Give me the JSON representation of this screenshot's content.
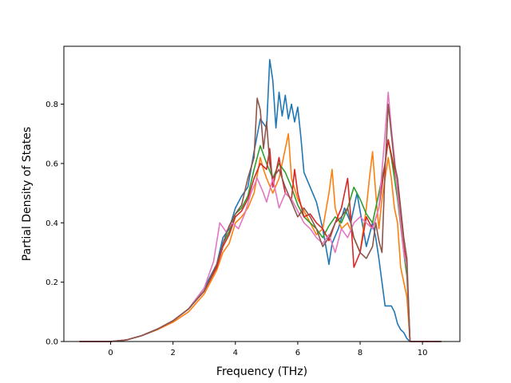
{
  "chart_data": {
    "type": "line",
    "xlabel": "Frequency (THz)",
    "ylabel": "Partial Density of States",
    "xlim": [
      -1.5,
      11.2
    ],
    "ylim": [
      0.0,
      0.995
    ],
    "xticks": [
      0,
      2,
      4,
      6,
      8,
      10
    ],
    "yticks": [
      0.0,
      0.2,
      0.4,
      0.6,
      0.8
    ],
    "xtick_labels": [
      "0",
      "2",
      "4",
      "6",
      "8",
      "10"
    ],
    "ytick_labels": [
      "0.0",
      "0.2",
      "0.4",
      "0.6",
      "0.8"
    ],
    "grid": false,
    "series": [
      {
        "color": "#1f77b4",
        "points": [
          [
            -1.0,
            0
          ],
          [
            0,
            0
          ],
          [
            0.5,
            0.005
          ],
          [
            1.0,
            0.02
          ],
          [
            1.5,
            0.04
          ],
          [
            2.0,
            0.07
          ],
          [
            2.5,
            0.11
          ],
          [
            3.0,
            0.18
          ],
          [
            3.4,
            0.26
          ],
          [
            3.6,
            0.35
          ],
          [
            3.8,
            0.38
          ],
          [
            4.0,
            0.45
          ],
          [
            4.2,
            0.49
          ],
          [
            4.4,
            0.52
          ],
          [
            4.6,
            0.64
          ],
          [
            4.8,
            0.75
          ],
          [
            5.0,
            0.72
          ],
          [
            5.1,
            0.95
          ],
          [
            5.2,
            0.88
          ],
          [
            5.3,
            0.72
          ],
          [
            5.4,
            0.84
          ],
          [
            5.5,
            0.76
          ],
          [
            5.6,
            0.83
          ],
          [
            5.7,
            0.75
          ],
          [
            5.8,
            0.8
          ],
          [
            5.9,
            0.74
          ],
          [
            6.0,
            0.79
          ],
          [
            6.1,
            0.69
          ],
          [
            6.2,
            0.57
          ],
          [
            6.4,
            0.52
          ],
          [
            6.6,
            0.47
          ],
          [
            6.8,
            0.38
          ],
          [
            7.0,
            0.26
          ],
          [
            7.1,
            0.33
          ],
          [
            7.3,
            0.38
          ],
          [
            7.5,
            0.45
          ],
          [
            7.7,
            0.4
          ],
          [
            7.9,
            0.5
          ],
          [
            8.1,
            0.38
          ],
          [
            8.2,
            0.32
          ],
          [
            8.4,
            0.4
          ],
          [
            8.5,
            0.35
          ],
          [
            8.6,
            0.28
          ],
          [
            8.7,
            0.2
          ],
          [
            8.8,
            0.12
          ],
          [
            9.0,
            0.12
          ],
          [
            9.1,
            0.1
          ],
          [
            9.2,
            0.06
          ],
          [
            9.3,
            0.04
          ],
          [
            9.4,
            0.03
          ],
          [
            9.5,
            0.01
          ],
          [
            9.6,
            0
          ],
          [
            10.6,
            0
          ]
        ]
      },
      {
        "color": "#ff7f0e",
        "points": [
          [
            -1.0,
            0
          ],
          [
            0,
            0
          ],
          [
            0.5,
            0.005
          ],
          [
            1.0,
            0.02
          ],
          [
            1.5,
            0.04
          ],
          [
            2.0,
            0.065
          ],
          [
            2.5,
            0.1
          ],
          [
            3.0,
            0.16
          ],
          [
            3.4,
            0.24
          ],
          [
            3.6,
            0.3
          ],
          [
            3.8,
            0.33
          ],
          [
            4.0,
            0.4
          ],
          [
            4.2,
            0.42
          ],
          [
            4.4,
            0.45
          ],
          [
            4.6,
            0.5
          ],
          [
            4.8,
            0.62
          ],
          [
            4.9,
            0.58
          ],
          [
            5.0,
            0.55
          ],
          [
            5.2,
            0.5
          ],
          [
            5.4,
            0.55
          ],
          [
            5.6,
            0.65
          ],
          [
            5.7,
            0.7
          ],
          [
            5.8,
            0.55
          ],
          [
            6.0,
            0.48
          ],
          [
            6.2,
            0.44
          ],
          [
            6.4,
            0.4
          ],
          [
            6.6,
            0.36
          ],
          [
            6.8,
            0.38
          ],
          [
            7.0,
            0.5
          ],
          [
            7.1,
            0.58
          ],
          [
            7.2,
            0.45
          ],
          [
            7.4,
            0.38
          ],
          [
            7.6,
            0.4
          ],
          [
            7.8,
            0.35
          ],
          [
            8.0,
            0.3
          ],
          [
            8.2,
            0.45
          ],
          [
            8.3,
            0.55
          ],
          [
            8.4,
            0.64
          ],
          [
            8.5,
            0.5
          ],
          [
            8.6,
            0.38
          ],
          [
            8.7,
            0.48
          ],
          [
            8.8,
            0.55
          ],
          [
            8.9,
            0.62
          ],
          [
            9.0,
            0.55
          ],
          [
            9.1,
            0.45
          ],
          [
            9.2,
            0.4
          ],
          [
            9.3,
            0.25
          ],
          [
            9.4,
            0.2
          ],
          [
            9.5,
            0.15
          ],
          [
            9.6,
            0
          ],
          [
            10.6,
            0
          ]
        ]
      },
      {
        "color": "#2ca02c",
        "points": [
          [
            -1.0,
            0
          ],
          [
            0,
            0
          ],
          [
            0.5,
            0.005
          ],
          [
            1.0,
            0.02
          ],
          [
            1.5,
            0.042
          ],
          [
            2.0,
            0.07
          ],
          [
            2.5,
            0.11
          ],
          [
            3.0,
            0.17
          ],
          [
            3.4,
            0.25
          ],
          [
            3.6,
            0.33
          ],
          [
            3.8,
            0.37
          ],
          [
            4.0,
            0.43
          ],
          [
            4.2,
            0.45
          ],
          [
            4.4,
            0.49
          ],
          [
            4.6,
            0.58
          ],
          [
            4.8,
            0.66
          ],
          [
            5.0,
            0.6
          ],
          [
            5.2,
            0.55
          ],
          [
            5.4,
            0.6
          ],
          [
            5.6,
            0.57
          ],
          [
            5.8,
            0.52
          ],
          [
            6.0,
            0.46
          ],
          [
            6.2,
            0.42
          ],
          [
            6.4,
            0.4
          ],
          [
            6.6,
            0.38
          ],
          [
            6.8,
            0.35
          ],
          [
            7.0,
            0.39
          ],
          [
            7.2,
            0.42
          ],
          [
            7.4,
            0.4
          ],
          [
            7.6,
            0.45
          ],
          [
            7.8,
            0.52
          ],
          [
            8.0,
            0.48
          ],
          [
            8.2,
            0.43
          ],
          [
            8.4,
            0.4
          ],
          [
            8.6,
            0.5
          ],
          [
            8.8,
            0.6
          ],
          [
            8.9,
            0.68
          ],
          [
            9.0,
            0.62
          ],
          [
            9.1,
            0.55
          ],
          [
            9.2,
            0.48
          ],
          [
            9.4,
            0.3
          ],
          [
            9.5,
            0.22
          ],
          [
            9.6,
            0
          ],
          [
            10.6,
            0
          ]
        ]
      },
      {
        "color": "#d62728",
        "points": [
          [
            -1.0,
            0
          ],
          [
            0,
            0
          ],
          [
            0.5,
            0.005
          ],
          [
            1.0,
            0.02
          ],
          [
            1.5,
            0.042
          ],
          [
            2.0,
            0.07
          ],
          [
            2.5,
            0.11
          ],
          [
            3.0,
            0.17
          ],
          [
            3.4,
            0.25
          ],
          [
            3.6,
            0.32
          ],
          [
            3.8,
            0.36
          ],
          [
            4.0,
            0.42
          ],
          [
            4.2,
            0.44
          ],
          [
            4.4,
            0.48
          ],
          [
            4.6,
            0.55
          ],
          [
            4.8,
            0.6
          ],
          [
            5.0,
            0.58
          ],
          [
            5.1,
            0.65
          ],
          [
            5.2,
            0.52
          ],
          [
            5.4,
            0.62
          ],
          [
            5.5,
            0.55
          ],
          [
            5.6,
            0.5
          ],
          [
            5.8,
            0.48
          ],
          [
            5.9,
            0.58
          ],
          [
            6.0,
            0.5
          ],
          [
            6.2,
            0.42
          ],
          [
            6.4,
            0.43
          ],
          [
            6.6,
            0.4
          ],
          [
            6.8,
            0.38
          ],
          [
            7.0,
            0.34
          ],
          [
            7.2,
            0.4
          ],
          [
            7.4,
            0.45
          ],
          [
            7.6,
            0.55
          ],
          [
            7.7,
            0.42
          ],
          [
            7.8,
            0.25
          ],
          [
            8.0,
            0.3
          ],
          [
            8.2,
            0.42
          ],
          [
            8.4,
            0.38
          ],
          [
            8.6,
            0.45
          ],
          [
            8.8,
            0.6
          ],
          [
            8.9,
            0.68
          ],
          [
            9.0,
            0.63
          ],
          [
            9.1,
            0.58
          ],
          [
            9.2,
            0.52
          ],
          [
            9.4,
            0.32
          ],
          [
            9.5,
            0.25
          ],
          [
            9.6,
            0
          ],
          [
            10.6,
            0
          ]
        ]
      },
      {
        "color": "#e377c2",
        "points": [
          [
            -1.0,
            0
          ],
          [
            0,
            0
          ],
          [
            0.5,
            0.005
          ],
          [
            1.0,
            0.02
          ],
          [
            1.5,
            0.042
          ],
          [
            2.0,
            0.07
          ],
          [
            2.5,
            0.11
          ],
          [
            3.0,
            0.18
          ],
          [
            3.3,
            0.27
          ],
          [
            3.5,
            0.4
          ],
          [
            3.7,
            0.37
          ],
          [
            3.9,
            0.4
          ],
          [
            4.1,
            0.38
          ],
          [
            4.3,
            0.43
          ],
          [
            4.5,
            0.5
          ],
          [
            4.7,
            0.55
          ],
          [
            4.9,
            0.5
          ],
          [
            5.0,
            0.47
          ],
          [
            5.2,
            0.55
          ],
          [
            5.4,
            0.45
          ],
          [
            5.6,
            0.5
          ],
          [
            5.8,
            0.48
          ],
          [
            6.0,
            0.44
          ],
          [
            6.2,
            0.4
          ],
          [
            6.4,
            0.38
          ],
          [
            6.6,
            0.35
          ],
          [
            6.8,
            0.33
          ],
          [
            7.0,
            0.36
          ],
          [
            7.2,
            0.3
          ],
          [
            7.4,
            0.38
          ],
          [
            7.6,
            0.35
          ],
          [
            7.8,
            0.4
          ],
          [
            8.0,
            0.42
          ],
          [
            8.2,
            0.4
          ],
          [
            8.4,
            0.38
          ],
          [
            8.6,
            0.45
          ],
          [
            8.8,
            0.7
          ],
          [
            8.9,
            0.84
          ],
          [
            9.0,
            0.72
          ],
          [
            9.1,
            0.62
          ],
          [
            9.2,
            0.5
          ],
          [
            9.4,
            0.3
          ],
          [
            9.5,
            0.25
          ],
          [
            9.6,
            0
          ],
          [
            10.6,
            0
          ]
        ]
      },
      {
        "color": "#8c564b",
        "points": [
          [
            -1.0,
            0
          ],
          [
            0,
            0
          ],
          [
            0.5,
            0.005
          ],
          [
            1.0,
            0.02
          ],
          [
            1.5,
            0.042
          ],
          [
            2.0,
            0.07
          ],
          [
            2.5,
            0.11
          ],
          [
            3.0,
            0.17
          ],
          [
            3.4,
            0.26
          ],
          [
            3.6,
            0.33
          ],
          [
            3.8,
            0.39
          ],
          [
            4.0,
            0.43
          ],
          [
            4.2,
            0.46
          ],
          [
            4.4,
            0.55
          ],
          [
            4.6,
            0.62
          ],
          [
            4.7,
            0.82
          ],
          [
            4.8,
            0.78
          ],
          [
            4.9,
            0.65
          ],
          [
            5.0,
            0.74
          ],
          [
            5.1,
            0.6
          ],
          [
            5.2,
            0.55
          ],
          [
            5.4,
            0.58
          ],
          [
            5.6,
            0.52
          ],
          [
            5.8,
            0.47
          ],
          [
            6.0,
            0.42
          ],
          [
            6.2,
            0.45
          ],
          [
            6.4,
            0.42
          ],
          [
            6.6,
            0.38
          ],
          [
            6.8,
            0.32
          ],
          [
            7.0,
            0.35
          ],
          [
            7.2,
            0.4
          ],
          [
            7.4,
            0.42
          ],
          [
            7.6,
            0.45
          ],
          [
            7.8,
            0.35
          ],
          [
            8.0,
            0.3
          ],
          [
            8.2,
            0.28
          ],
          [
            8.4,
            0.32
          ],
          [
            8.5,
            0.4
          ],
          [
            8.6,
            0.34
          ],
          [
            8.7,
            0.3
          ],
          [
            8.8,
            0.58
          ],
          [
            8.9,
            0.8
          ],
          [
            9.0,
            0.7
          ],
          [
            9.1,
            0.6
          ],
          [
            9.2,
            0.55
          ],
          [
            9.4,
            0.35
          ],
          [
            9.5,
            0.28
          ],
          [
            9.6,
            0
          ],
          [
            10.6,
            0
          ]
        ]
      }
    ]
  }
}
